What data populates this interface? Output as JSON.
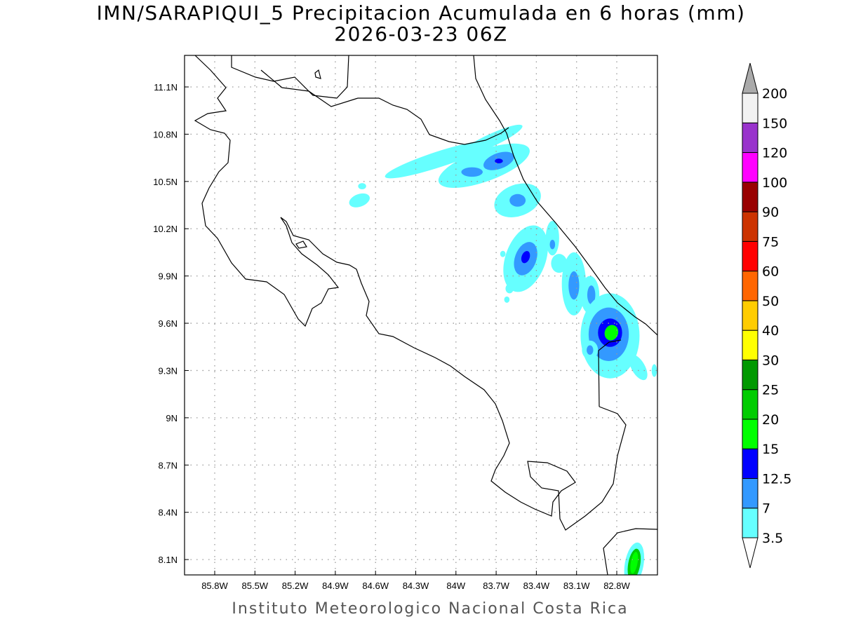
{
  "title": {
    "line1": "IMN/SARAPIQUI_5 Precipitacion Acumulada en 6 horas (mm)",
    "line2": "2026-03-23 06Z"
  },
  "footer": "Instituto Meteorologico Nacional Costa Rica",
  "chart_data": {
    "type": "map",
    "variable": "6-hour accumulated precipitation (mm)",
    "lon_range": [
      -86.03,
      -82.5
    ],
    "lat_range": [
      8.0,
      11.3
    ],
    "lon_ticks": [
      -85.8,
      -85.5,
      -85.2,
      -84.9,
      -84.6,
      -84.3,
      -84.0,
      -83.7,
      -83.4,
      -83.1,
      -82.8
    ],
    "lon_tick_labels": [
      "85.8W",
      "85.5W",
      "85.2W",
      "84.9W",
      "84.6W",
      "84.3W",
      "84W",
      "83.7W",
      "83.4W",
      "83.1W",
      "82.8W"
    ],
    "lat_ticks": [
      11.1,
      10.8,
      10.5,
      10.2,
      9.9,
      9.6,
      9.3,
      9.0,
      8.7,
      8.4,
      8.1
    ],
    "lat_tick_labels": [
      "11.1N",
      "10.8N",
      "10.5N",
      "10.2N",
      "9.9N",
      "9.6N",
      "9.3N",
      "9N",
      "8.7N",
      "8.4N",
      "8.1N"
    ],
    "grid": true,
    "colorbar": {
      "placement": "right",
      "levels": [
        "3.5",
        "7",
        "12.5",
        "15",
        "20",
        "25",
        "30",
        "40",
        "50",
        "60",
        "75",
        "90",
        "100",
        "120",
        "150",
        "200"
      ],
      "colors": [
        "#66ffff",
        "#3399ff",
        "#0000ff",
        "#00ff00",
        "#00cc00",
        "#009900",
        "#ffff00",
        "#ffcc00",
        "#ff6600",
        "#ff0000",
        "#cc3300",
        "#990000",
        "#ff00ff",
        "#9933cc",
        "#f2f2f2"
      ],
      "below_color": "#ffffff",
      "above_color": "#aaaaaa"
    },
    "precip_cells": [
      {
        "lon": -84.13,
        "lat": 10.64,
        "dlon": 0.42,
        "dlat": 0.05,
        "level": 0,
        "rot": -18
      },
      {
        "lon": -83.74,
        "lat": 10.76,
        "dlon": 0.26,
        "dlat": 0.04,
        "level": 0,
        "rot": -25
      },
      {
        "lon": -83.79,
        "lat": 10.6,
        "dlon": 0.36,
        "dlat": 0.1,
        "level": 0,
        "rot": -20
      },
      {
        "lon": -83.68,
        "lat": 10.63,
        "dlon": 0.12,
        "dlat": 0.05,
        "level": 1,
        "rot": -20
      },
      {
        "lon": -83.88,
        "lat": 10.56,
        "dlon": 0.08,
        "dlat": 0.03,
        "level": 1,
        "rot": 0
      },
      {
        "lon": -83.68,
        "lat": 10.63,
        "dlon": 0.03,
        "dlat": 0.015,
        "level": 2,
        "rot": 0
      },
      {
        "lon": -83.54,
        "lat": 10.38,
        "dlon": 0.18,
        "dlat": 0.1,
        "level": 0,
        "rot": -20
      },
      {
        "lon": -83.54,
        "lat": 10.38,
        "dlon": 0.06,
        "dlat": 0.04,
        "level": 1,
        "rot": 0
      },
      {
        "lon": -84.72,
        "lat": 10.38,
        "dlon": 0.08,
        "dlat": 0.04,
        "level": 0,
        "rot": -20
      },
      {
        "lon": -84.7,
        "lat": 10.47,
        "dlon": 0.03,
        "dlat": 0.02,
        "level": 0,
        "rot": 0
      },
      {
        "lon": -83.48,
        "lat": 10.01,
        "dlon": 0.15,
        "dlat": 0.22,
        "level": 0,
        "rot": 20
      },
      {
        "lon": -83.48,
        "lat": 10.01,
        "dlon": 0.08,
        "dlat": 0.11,
        "level": 1,
        "rot": 20
      },
      {
        "lon": -83.48,
        "lat": 10.02,
        "dlon": 0.03,
        "dlat": 0.04,
        "level": 2,
        "rot": 20
      },
      {
        "lon": -83.28,
        "lat": 10.14,
        "dlon": 0.05,
        "dlat": 0.11,
        "level": 0,
        "rot": 0
      },
      {
        "lon": -83.28,
        "lat": 10.1,
        "dlon": 0.02,
        "dlat": 0.03,
        "level": 1,
        "rot": 0
      },
      {
        "lon": -83.23,
        "lat": 9.98,
        "dlon": 0.06,
        "dlat": 0.06,
        "level": 0,
        "rot": 0
      },
      {
        "lon": -83.12,
        "lat": 9.85,
        "dlon": 0.09,
        "dlat": 0.2,
        "level": 0,
        "rot": 0
      },
      {
        "lon": -83.12,
        "lat": 9.84,
        "dlon": 0.04,
        "dlat": 0.09,
        "level": 1,
        "rot": 0
      },
      {
        "lon": -83.0,
        "lat": 9.78,
        "dlon": 0.07,
        "dlat": 0.12,
        "level": 0,
        "rot": 0
      },
      {
        "lon": -82.99,
        "lat": 9.78,
        "dlon": 0.03,
        "dlat": 0.06,
        "level": 1,
        "rot": 0
      },
      {
        "lon": -82.85,
        "lat": 9.52,
        "dlon": 0.22,
        "dlat": 0.27,
        "level": 0,
        "rot": 0
      },
      {
        "lon": -82.86,
        "lat": 9.53,
        "dlon": 0.15,
        "dlat": 0.17,
        "level": 1,
        "rot": 0
      },
      {
        "lon": -82.85,
        "lat": 9.54,
        "dlon": 0.09,
        "dlat": 0.09,
        "level": 2,
        "rot": 0
      },
      {
        "lon": -82.84,
        "lat": 9.54,
        "dlon": 0.05,
        "dlat": 0.05,
        "level": 3,
        "rot": 20
      },
      {
        "lon": -83.0,
        "lat": 9.43,
        "dlon": 0.06,
        "dlat": 0.06,
        "level": 0,
        "rot": 0
      },
      {
        "lon": -83.0,
        "lat": 9.43,
        "dlon": 0.025,
        "dlat": 0.03,
        "level": 1,
        "rot": 0
      },
      {
        "lon": -82.64,
        "lat": 9.32,
        "dlon": 0.05,
        "dlat": 0.09,
        "level": 0,
        "rot": -30
      },
      {
        "lon": -82.52,
        "lat": 9.3,
        "dlon": 0.02,
        "dlat": 0.04,
        "level": 0,
        "rot": 0
      },
      {
        "lon": -83.6,
        "lat": 9.82,
        "dlon": 0.03,
        "dlat": 0.03,
        "level": 0,
        "rot": 0
      },
      {
        "lon": -83.62,
        "lat": 9.75,
        "dlon": 0.02,
        "dlat": 0.02,
        "level": 0,
        "rot": 0
      },
      {
        "lon": -83.65,
        "lat": 10.04,
        "dlon": 0.02,
        "dlat": 0.02,
        "level": 0,
        "rot": 0
      },
      {
        "lon": -82.67,
        "lat": 8.07,
        "dlon": 0.07,
        "dlat": 0.14,
        "level": 0,
        "rot": 10
      },
      {
        "lon": -82.67,
        "lat": 8.07,
        "dlon": 0.045,
        "dlat": 0.1,
        "level": 4,
        "rot": 10
      },
      {
        "lon": -82.67,
        "lat": 8.08,
        "dlon": 0.025,
        "dlat": 0.07,
        "level": 3,
        "rot": 10
      }
    ]
  }
}
